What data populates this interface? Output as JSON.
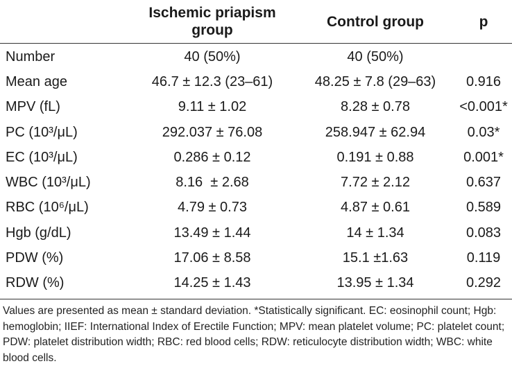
{
  "table": {
    "headers": {
      "label": "",
      "group1": "Ischemic priapism group",
      "group2": "Control group",
      "p": "p"
    },
    "rows": [
      {
        "label": "Number",
        "group1": "40 (50%)",
        "group2": "40 (50%)",
        "p": ""
      },
      {
        "label": "Mean age",
        "group1": "46.7 ± 12.3 (23–61)",
        "group2": "48.25 ± 7.8 (29–63)",
        "p": "0.916"
      },
      {
        "label": "MPV (fL)",
        "group1": "9.11 ± 1.02",
        "group2": "8.28 ± 0.78",
        "p": "<0.001*"
      },
      {
        "label": "PC (10³/μL)",
        "group1": "292.037 ± 76.08",
        "group2": "258.947 ± 62.94",
        "p": "0.03*"
      },
      {
        "label": "EC (10³/μL)",
        "group1": "0.286 ± 0.12",
        "group2": "0.191 ± 0.88",
        "p": "0.001*"
      },
      {
        "label": "WBC (10³/μL)",
        "group1": "8.16  ± 2.68",
        "group2": "7.72 ± 2.12",
        "p": "0.637"
      },
      {
        "label": "RBC (10⁶/μL)",
        "group1": "4.79 ± 0.73",
        "group2": "4.87 ± 0.61",
        "p": "0.589"
      },
      {
        "label": "Hgb (g/dL)",
        "group1": "13.49 ± 1.44",
        "group2": "14 ± 1.34",
        "p": "0.083"
      },
      {
        "label": "PDW (%)",
        "group1": "17.06 ± 8.58",
        "group2": "15.1 ±1.63",
        "p": "0.119"
      },
      {
        "label": "RDW (%)",
        "group1": "14.25 ± 1.43",
        "group2": "13.95 ± 1.34",
        "p": "0.292"
      }
    ],
    "footnote": "Values are presented as mean ± standard deviation. *Statistically significant. EC: eosinophil count; Hgb: hemoglobin; IIEF: International Index of Erectile Function; MPV: mean platelet volume; PC: platelet count; PDW: platelet distribution width; RBC: red blood cells; RDW: reticulocyte distribution width; WBC: white blood cells."
  }
}
